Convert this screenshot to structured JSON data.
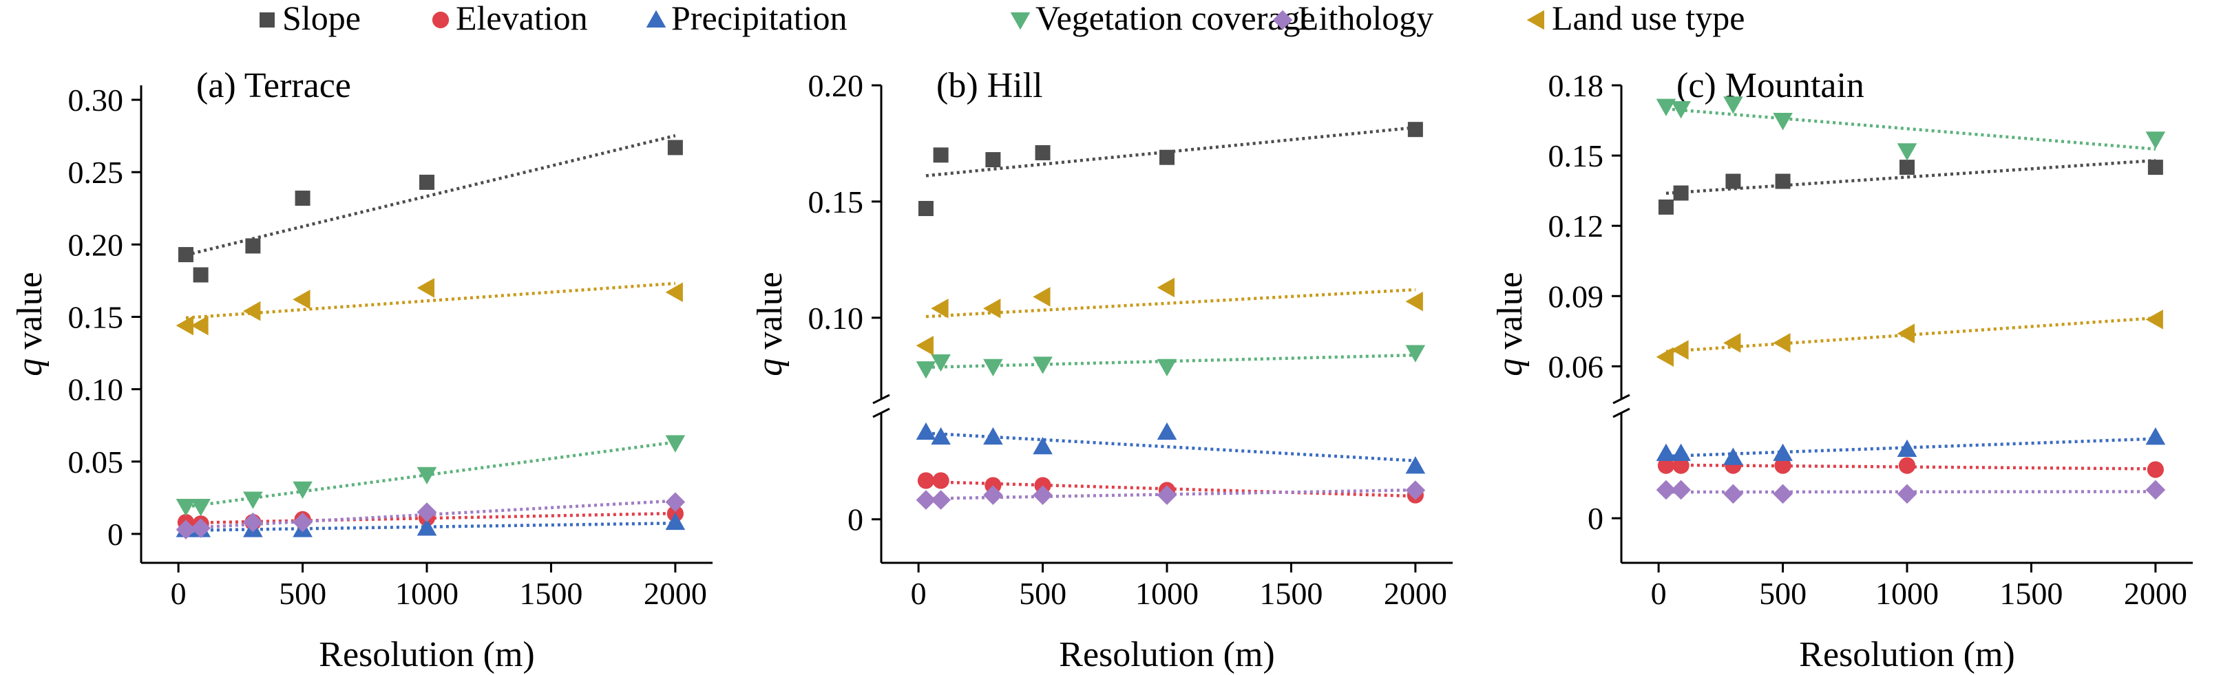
{
  "legend": [
    {
      "name": "Slope",
      "color": "#4d4d4d",
      "marker": "square"
    },
    {
      "name": "Elevation",
      "color": "#e0404a",
      "marker": "circle"
    },
    {
      "name": "Precipitation",
      "color": "#3a6cc0",
      "marker": "triangle-up"
    },
    {
      "name": "Vegetation coverage",
      "color": "#5cb27c",
      "marker": "triangle-down"
    },
    {
      "name": "Lithology",
      "color": "#a07cc4",
      "marker": "diamond"
    },
    {
      "name": "Land use type",
      "color": "#c89a1a",
      "marker": "triangle-left"
    }
  ],
  "chart_data": [
    {
      "type": "scatter",
      "title": "(a) Terrace",
      "xlabel": "Resolution (m)",
      "ylabel": "q value",
      "ylabel_italic": "q",
      "ylabel_rest": " value",
      "xlim": [
        -150,
        2150
      ],
      "xticks": [
        0,
        500,
        1000,
        1500,
        2000
      ],
      "x": [
        30,
        90,
        300,
        500,
        1000,
        2000
      ],
      "broken_axis": false,
      "ylim": [
        -0.02,
        0.31
      ],
      "yticks": [
        0,
        0.05,
        0.1,
        0.15,
        0.2,
        0.25,
        0.3
      ],
      "ytick_labels": [
        "0",
        "0.05",
        "0.10",
        "0.15",
        "0.20",
        "0.25",
        "0.30"
      ],
      "grid": false,
      "trendlines": true,
      "series": [
        {
          "name": "Slope",
          "values": [
            0.193,
            0.179,
            0.199,
            0.232,
            0.243,
            0.267
          ]
        },
        {
          "name": "Elevation",
          "values": [
            0.008,
            0.007,
            0.008,
            0.01,
            0.011,
            0.014
          ]
        },
        {
          "name": "Precipitation",
          "values": [
            0.003,
            0.003,
            0.003,
            0.003,
            0.004,
            0.008
          ]
        },
        {
          "name": "Vegetation coverage",
          "values": [
            0.019,
            0.019,
            0.024,
            0.031,
            0.041,
            0.063
          ]
        },
        {
          "name": "Lithology",
          "values": [
            0.003,
            0.004,
            0.008,
            0.008,
            0.015,
            0.022
          ]
        },
        {
          "name": "Land use type",
          "values": [
            0.144,
            0.144,
            0.154,
            0.162,
            0.17,
            0.167
          ]
        }
      ]
    },
    {
      "type": "scatter",
      "title": "(b) Hill",
      "xlabel": "Resolution (m)",
      "ylabel": "q value",
      "ylabel_italic": "q",
      "ylabel_rest": " value",
      "xlim": [
        -150,
        2150
      ],
      "xticks": [
        0,
        500,
        1000,
        1500,
        2000
      ],
      "x": [
        30,
        90,
        300,
        500,
        1000,
        2000
      ],
      "broken_axis": true,
      "ylim_upper": [
        0.065,
        0.2
      ],
      "yticks_upper": [
        0.1,
        0.15,
        0.2
      ],
      "ytick_labels_upper": [
        "0.10",
        "0.15",
        "0.20"
      ],
      "ylim_lower": [
        -0.009,
        0.022
      ],
      "yticks_lower": [
        0
      ],
      "ytick_labels_lower": [
        "0"
      ],
      "grid": false,
      "trendlines": true,
      "series": [
        {
          "name": "Slope",
          "values": [
            0.147,
            0.17,
            0.168,
            0.171,
            0.169,
            0.181
          ]
        },
        {
          "name": "Elevation",
          "values": [
            0.008,
            0.008,
            0.007,
            0.007,
            0.006,
            0.005
          ]
        },
        {
          "name": "Precipitation",
          "values": [
            0.018,
            0.017,
            0.017,
            0.015,
            0.018,
            0.011
          ]
        },
        {
          "name": "Vegetation coverage",
          "values": [
            0.078,
            0.081,
            0.079,
            0.08,
            0.079,
            0.085
          ]
        },
        {
          "name": "Lithology",
          "values": [
            0.004,
            0.004,
            0.005,
            0.005,
            0.005,
            0.006
          ]
        },
        {
          "name": "Land use type",
          "values": [
            0.088,
            0.104,
            0.104,
            0.109,
            0.113,
            0.107
          ]
        }
      ]
    },
    {
      "type": "scatter",
      "title": "(c) Mountain",
      "xlabel": "Resolution (m)",
      "ylabel": "q value",
      "ylabel_italic": "q",
      "ylabel_rest": " value",
      "xlim": [
        -150,
        2150
      ],
      "xticks": [
        0,
        500,
        1000,
        1500,
        2000
      ],
      "x": [
        30,
        90,
        300,
        500,
        1000,
        2000
      ],
      "broken_axis": true,
      "ylim_upper": [
        0.046,
        0.18
      ],
      "yticks_upper": [
        0.06,
        0.09,
        0.12,
        0.15,
        0.18
      ],
      "ytick_labels_upper": [
        "0.06",
        "0.09",
        "0.12",
        "0.15",
        "0.18"
      ],
      "ylim_lower": [
        -0.011,
        0.026
      ],
      "yticks_lower": [
        0
      ],
      "ytick_labels_lower": [
        "0"
      ],
      "grid": false,
      "trendlines": true,
      "series": [
        {
          "name": "Slope",
          "values": [
            0.128,
            0.134,
            0.139,
            0.139,
            0.145,
            0.145
          ]
        },
        {
          "name": "Elevation",
          "values": [
            0.013,
            0.013,
            0.013,
            0.013,
            0.013,
            0.012
          ]
        },
        {
          "name": "Precipitation",
          "values": [
            0.016,
            0.016,
            0.015,
            0.016,
            0.017,
            0.02
          ]
        },
        {
          "name": "Vegetation coverage",
          "values": [
            0.171,
            0.17,
            0.172,
            0.165,
            0.152,
            0.157
          ]
        },
        {
          "name": "Lithology",
          "values": [
            0.007,
            0.007,
            0.006,
            0.006,
            0.006,
            0.007
          ]
        },
        {
          "name": "Land use type",
          "values": [
            0.064,
            0.067,
            0.07,
            0.07,
            0.074,
            0.08
          ]
        }
      ]
    }
  ]
}
